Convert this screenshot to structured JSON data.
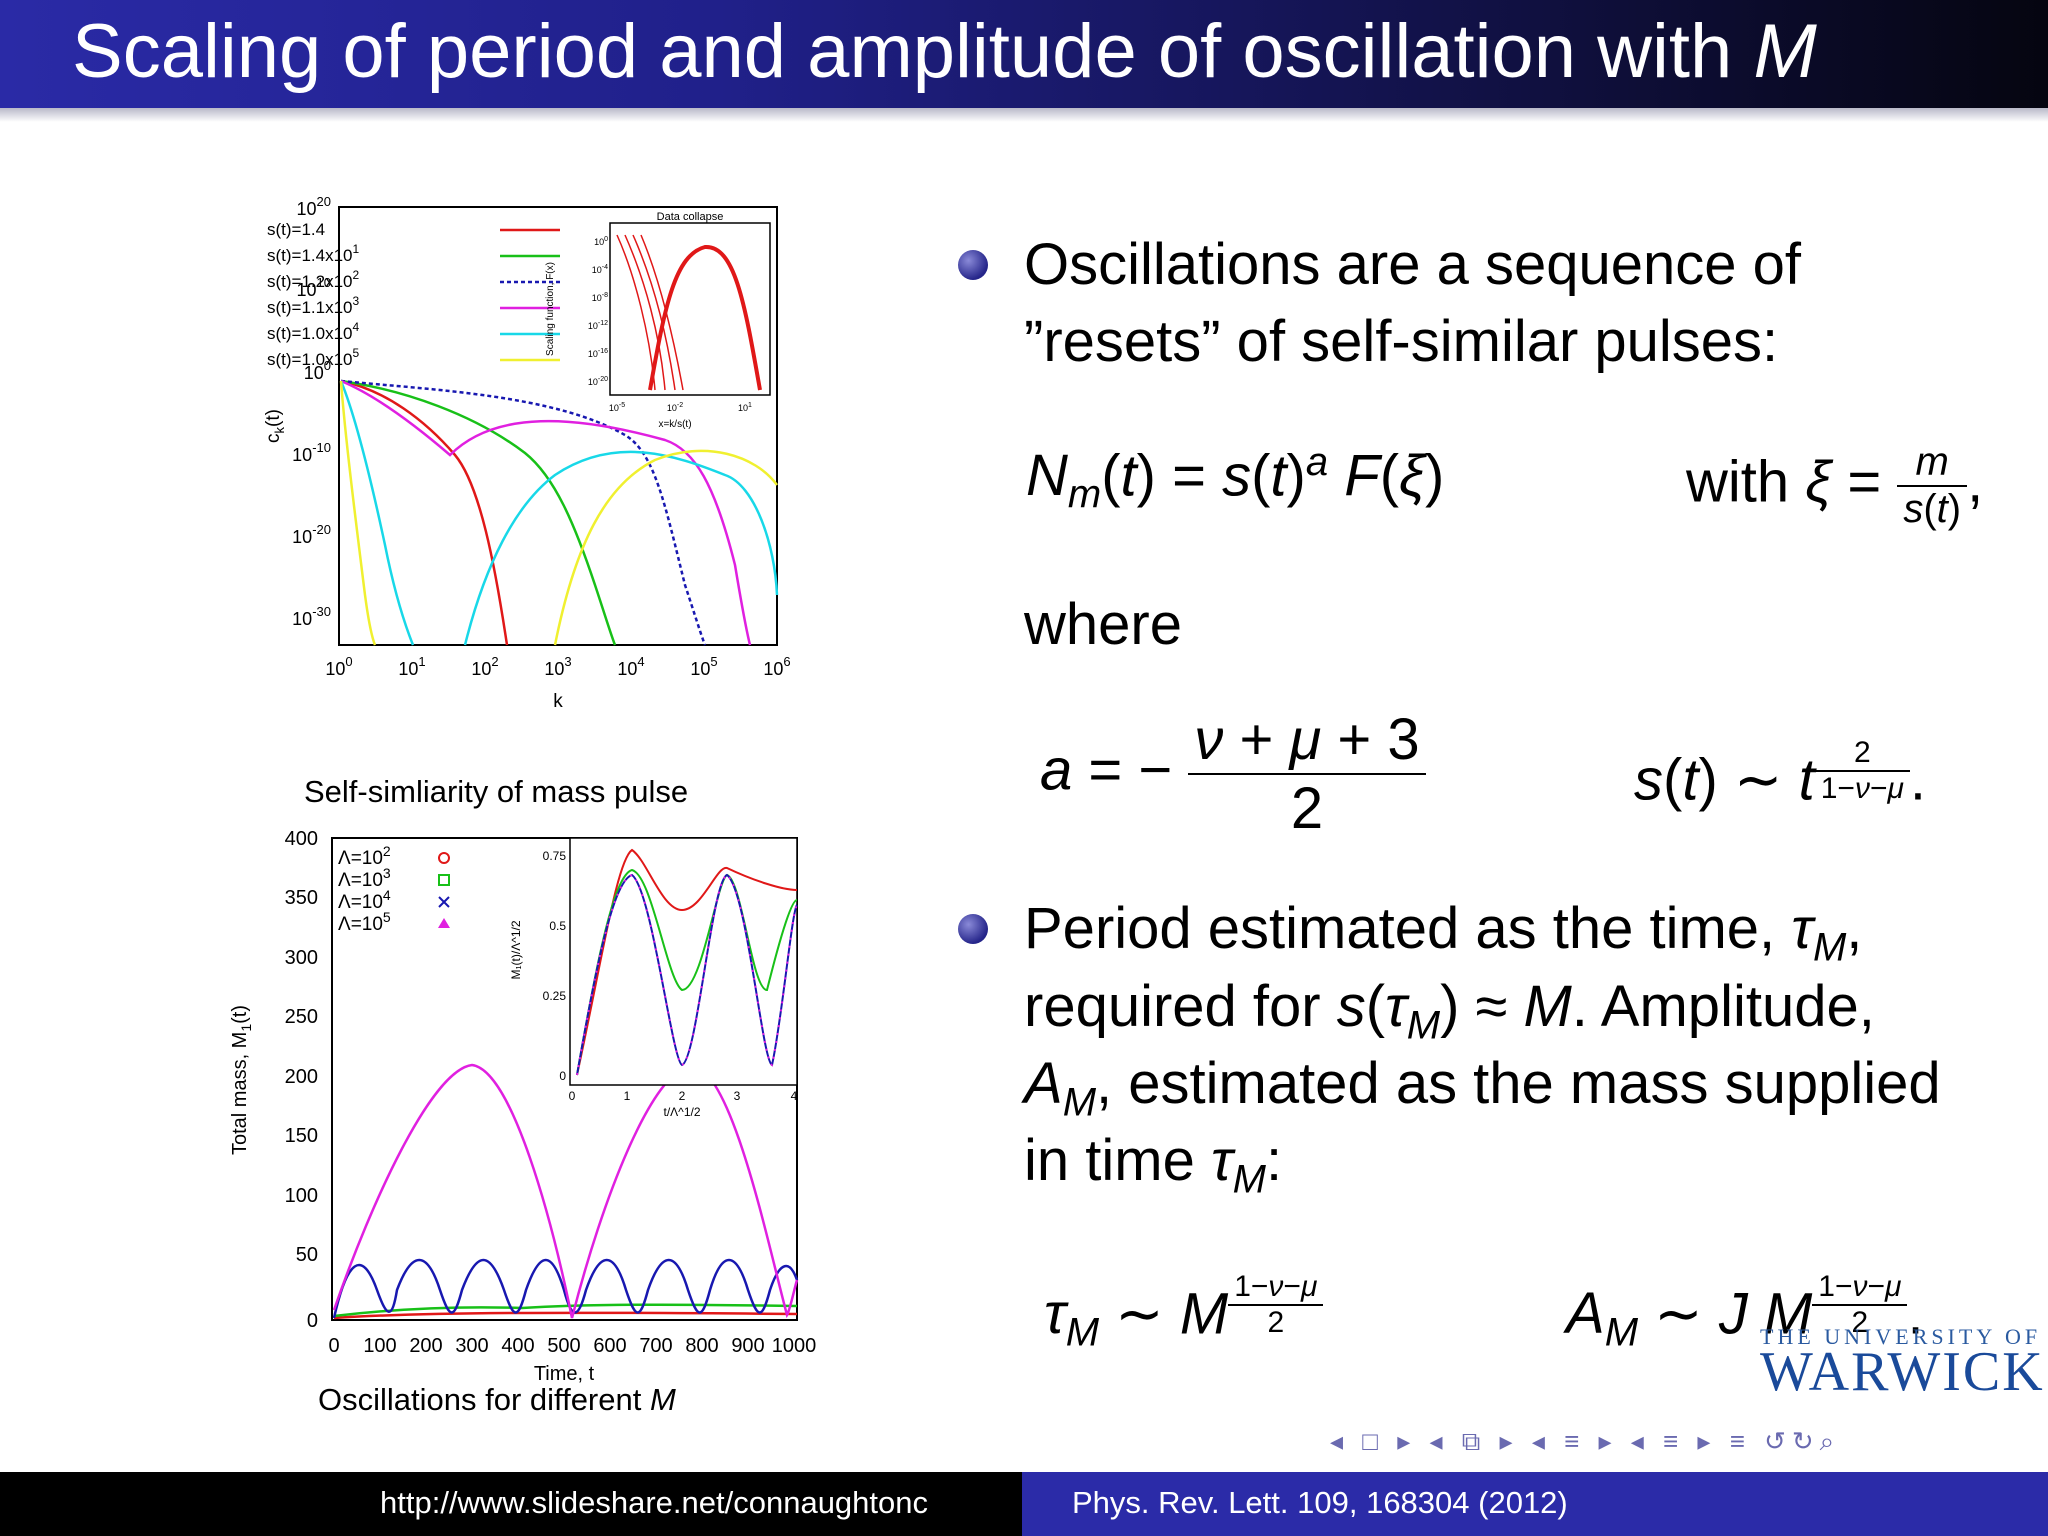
{
  "slide": {
    "title_prefix": "Scaling of period and amplitude of oscillation with ",
    "title_var": "M"
  },
  "figure_top": {
    "ylabel": "c",
    "ylabel_sub": "k",
    "ylabel_tail": "(t)",
    "xlabel": "k",
    "legend": [
      "s(t)=1.4",
      "s(t)=1.4x10",
      "s(t)=1.2x10",
      "s(t)=1.1x10",
      "s(t)=1.0x10",
      "s(t)=1.0x10"
    ],
    "legend_exp": [
      "",
      "1",
      "2",
      "3",
      "4",
      "5"
    ],
    "y_ticks": [
      "10",
      "10",
      "10",
      "10",
      "10",
      "10"
    ],
    "y_ticks_exp": [
      "20",
      "10",
      "0",
      "-10",
      "-20",
      "-30"
    ],
    "x_ticks": [
      "10",
      "10",
      "10",
      "10",
      "10",
      "10",
      "10"
    ],
    "x_ticks_exp": [
      "0",
      "1",
      "2",
      "3",
      "4",
      "5",
      "6"
    ],
    "inset_title": "Data collapse",
    "inset_ylabel": "Scaling function, F(x)",
    "inset_xlabel": "x=k/s(t)",
    "inset_y_ticks": [
      "10",
      "10",
      "10",
      "10",
      "10",
      "10"
    ],
    "inset_y_ticks_exp": [
      "0",
      "-4",
      "-8",
      "-12",
      "-16",
      "-20"
    ],
    "inset_x_ticks": [
      "10",
      "10",
      "10"
    ],
    "inset_x_ticks_exp": [
      "-5",
      "-2",
      "1"
    ]
  },
  "figure_bottom": {
    "title": "Self-simliarity of mass pulse",
    "ylabel": "Total mass, M",
    "ylabel_sub": "1",
    "ylabel_tail": "(t)",
    "xlabel": "Time, t",
    "legend": [
      "Λ=10",
      "Λ=10",
      "Λ=10",
      "Λ=10"
    ],
    "legend_exp": [
      "2",
      "3",
      "4",
      "5"
    ],
    "y_ticks": [
      "400",
      "350",
      "300",
      "250",
      "200",
      "150",
      "100",
      "50",
      "0"
    ],
    "x_ticks": [
      "0",
      "100",
      "200",
      "300",
      "400",
      "500",
      "600",
      "700",
      "800",
      "900",
      "1000"
    ],
    "inset_ylabel": "M₁(t)/Λ^1/2",
    "inset_xlabel": "t/Λ^1/2",
    "inset_y_ticks": [
      "0.75",
      "0.5",
      "0.25",
      "0"
    ],
    "inset_x_ticks": [
      "0",
      "1",
      "2",
      "3",
      "4"
    ],
    "caption_prefix": "Oscillations for different ",
    "caption_var": "M"
  },
  "colors": {
    "red": "#e01818",
    "green": "#18c018",
    "blue": "#1818b0",
    "magenta": "#e020e0",
    "cyan": "#18d8e8",
    "yellow": "#f0f030"
  },
  "bullets": [
    {
      "lines": [
        "Oscillations are a sequence of",
        "”resets” of self-similar pulses:"
      ]
    },
    {
      "lines": [
        "Period estimated as the time, ",
        "required for ",
        "A",
        "in time "
      ]
    }
  ],
  "text": {
    "where": "where",
    "with": "with",
    "bullet2_line2_tail": ". Amplitude,",
    "bullet2_line3_tail": ", estimated as the mass supplied"
  },
  "footer": {
    "left": "http://www.slideshare.net/connaughtonc",
    "right": "Phys. Rev. Lett. 109, 168304 (2012)"
  },
  "logo": {
    "line1": "THE UNIVERSITY OF",
    "line2": "WARWICK"
  },
  "nav_symbols": "◂ □ ▸ ◂ ⧉ ▸ ◂ ≡ ▸ ◂ ≡ ▸ ≡ ↺↻⌕"
}
